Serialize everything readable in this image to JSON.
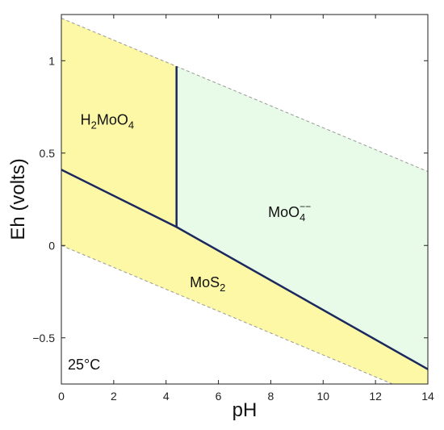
{
  "chart_data": {
    "type": "area",
    "title": "",
    "xlabel": "pH",
    "ylabel": "Eh (volts)",
    "xlim": [
      0,
      14
    ],
    "ylim": [
      -0.75,
      1.25
    ],
    "xticks": [
      0,
      2,
      4,
      6,
      8,
      10,
      12,
      14
    ],
    "xtick_labels": [
      "0",
      "2",
      "4",
      "6",
      "8",
      "10",
      "12",
      "14"
    ],
    "yticks": [
      -0.5,
      0,
      0.5,
      1
    ],
    "ytick_labels": [
      "−0.5",
      "0",
      "0.5",
      "1"
    ],
    "temperature_label": "25°C",
    "colors": {
      "yellow_fill": "#fdf8a6",
      "green_fill": "#e8fbe8",
      "boundary": "#1b2a5e",
      "water_line": "#999999"
    },
    "water_stability_lines": {
      "upper": {
        "x": [
          0,
          14
        ],
        "y": [
          1.23,
          0.4
        ]
      },
      "lower": {
        "x": [
          0,
          14
        ],
        "y": [
          0.0,
          -0.83
        ]
      }
    },
    "boundaries": [
      {
        "name": "H2MoO4/MoO4--",
        "x": [
          4.4,
          4.4
        ],
        "y": [
          0.1,
          0.97
        ]
      },
      {
        "name": "MoS2 upper boundary",
        "x": [
          0,
          4.4,
          14
        ],
        "y": [
          0.41,
          0.1,
          -0.67
        ]
      }
    ],
    "regions": [
      {
        "id": "h2moo4",
        "base": "H",
        "sub1": "2",
        "mid": "MoO",
        "sub2": "4",
        "label_x": 1.9,
        "label_y": 0.68
      },
      {
        "id": "moo4",
        "base": "MoO",
        "sub": "4",
        "sup": "−−",
        "label_x": 8.7,
        "label_y": 0.18
      },
      {
        "id": "mos2",
        "base": "MoS",
        "sub": "2",
        "label_x": 5.8,
        "label_y": -0.2
      }
    ]
  }
}
